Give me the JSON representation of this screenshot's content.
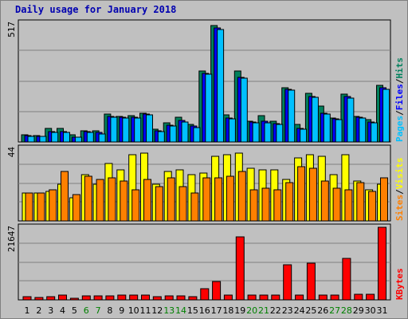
{
  "title": "Daily usage for January 2018",
  "days": [
    "1",
    "2",
    "3",
    "4",
    "5",
    "6",
    "7",
    "8",
    "9",
    "10",
    "11",
    "12",
    "13",
    "14",
    "15",
    "16",
    "17",
    "18",
    "19",
    "20",
    "21",
    "22",
    "23",
    "24",
    "25",
    "26",
    "27",
    "28",
    "29",
    "30",
    "31"
  ],
  "weekend_days": [
    "6",
    "7",
    "13",
    "14",
    "20",
    "21",
    "27",
    "28"
  ],
  "chart_data": [
    {
      "type": "bar",
      "panel": "top",
      "max_label": "517",
      "ylim": [
        0,
        517
      ],
      "grid": true,
      "legend_labels": [
        "Pages",
        "Files",
        "Hits"
      ],
      "legend_separator": "/",
      "legend_placement": "right",
      "categories": [
        "1",
        "2",
        "3",
        "4",
        "5",
        "6",
        "7",
        "8",
        "9",
        "10",
        "11",
        "12",
        "13",
        "14",
        "15",
        "16",
        "17",
        "18",
        "19",
        "20",
        "21",
        "22",
        "23",
        "24",
        "25",
        "26",
        "27",
        "28",
        "29",
        "30",
        "31"
      ],
      "series": [
        {
          "name": "Hits",
          "color": "#00805c",
          "values": [
            30,
            27,
            58,
            58,
            30,
            48,
            50,
            120,
            112,
            114,
            126,
            55,
            85,
            106,
            78,
            310,
            505,
            118,
            308,
            91,
            114,
            90,
            237,
            78,
            210,
            155,
            104,
            207,
            112,
            96,
            247
          ]
        },
        {
          "name": "Files",
          "color": "#0000ff",
          "values": [
            28,
            25,
            44,
            44,
            22,
            44,
            40,
            112,
            107,
            108,
            122,
            48,
            74,
            92,
            68,
            300,
            495,
            104,
            282,
            88,
            90,
            80,
            230,
            58,
            198,
            125,
            100,
            197,
            108,
            88,
            235
          ]
        },
        {
          "name": "Pages",
          "color": "#00c0ff",
          "values": [
            26,
            23,
            42,
            42,
            20,
            40,
            36,
            108,
            103,
            104,
            117,
            45,
            70,
            88,
            64,
            296,
            490,
            100,
            276,
            84,
            85,
            76,
            225,
            55,
            193,
            120,
            96,
            192,
            104,
            83,
            230
          ]
        }
      ]
    },
    {
      "type": "bar",
      "panel": "middle",
      "max_label": "44",
      "ylim": [
        0,
        44
      ],
      "grid": true,
      "legend_labels": [
        "Sites",
        "Visits"
      ],
      "legend_separator": "/",
      "legend_placement": "right",
      "categories": [
        "1",
        "2",
        "3",
        "4",
        "5",
        "6",
        "7",
        "8",
        "9",
        "10",
        "11",
        "12",
        "13",
        "14",
        "15",
        "16",
        "17",
        "18",
        "19",
        "20",
        "21",
        "22",
        "23",
        "24",
        "25",
        "26",
        "27",
        "28",
        "29",
        "30",
        "31"
      ],
      "series": [
        {
          "name": "Visits",
          "color": "#ffff00",
          "values": [
            17,
            17,
            18,
            22,
            14,
            28,
            22,
            35,
            31,
            40,
            41,
            22,
            30,
            31,
            28,
            29,
            39,
            40,
            41,
            32,
            31,
            31,
            25,
            38,
            40,
            39,
            28,
            40,
            24,
            19,
            22
          ]
        },
        {
          "name": "Sites",
          "color": "#ff8000",
          "values": [
            17,
            17,
            19,
            30,
            16,
            27,
            25,
            26,
            24,
            19,
            25,
            21,
            26,
            21,
            17,
            26,
            26,
            27,
            30,
            19,
            20,
            19,
            23,
            33,
            32,
            24,
            20,
            19,
            23,
            18,
            26
          ]
        }
      ]
    },
    {
      "type": "bar",
      "panel": "bottom",
      "max_label": "21647",
      "ylim": [
        0,
        21647
      ],
      "grid": true,
      "legend_labels": [
        "KBytes"
      ],
      "legend_separator": "",
      "legend_placement": "right",
      "categories": [
        "1",
        "2",
        "3",
        "4",
        "5",
        "6",
        "7",
        "8",
        "9",
        "10",
        "11",
        "12",
        "13",
        "14",
        "15",
        "16",
        "17",
        "18",
        "19",
        "20",
        "21",
        "22",
        "23",
        "24",
        "25",
        "26",
        "27",
        "28",
        "29",
        "30",
        "31"
      ],
      "series": [
        {
          "name": "KBytes",
          "color": "#ff0000",
          "values": [
            1000,
            600,
            900,
            1400,
            500,
            1200,
            1200,
            1300,
            1400,
            1500,
            1400,
            1000,
            1200,
            1300,
            1000,
            3300,
            5500,
            1400,
            18800,
            1400,
            1400,
            1400,
            10400,
            1400,
            10900,
            1400,
            1400,
            12300,
            1700,
            1700,
            21647
          ]
        }
      ]
    }
  ]
}
